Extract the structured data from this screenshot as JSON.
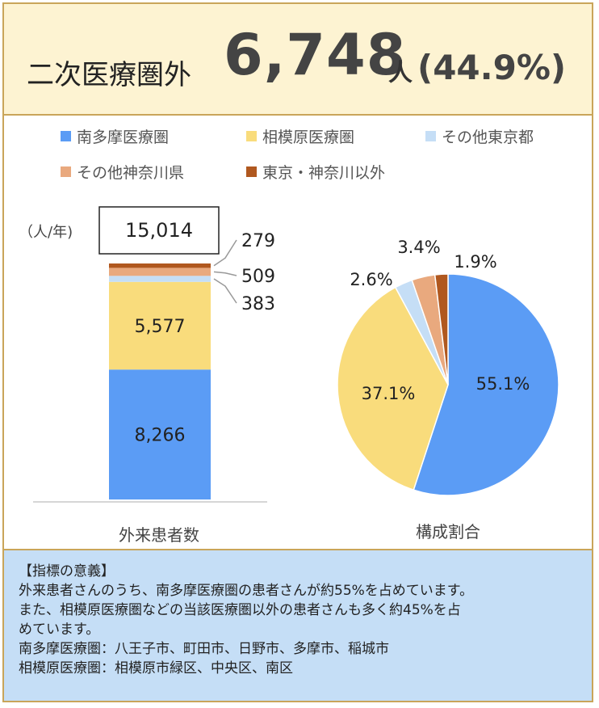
{
  "header": {
    "title": "二次医療圏外",
    "value": "6,748",
    "unit": "人",
    "percent": "(44.9%)"
  },
  "colors": {
    "border": "#c9a55a",
    "header_bg": "#fdf3d2",
    "note_bg": "#c5def6"
  },
  "chart_data": [
    {
      "type": "bar",
      "stacked": true,
      "unit_label": "（人/年)",
      "xlabel": "外来患者数",
      "total": 15014,
      "total_label": "15,014",
      "series": [
        {
          "name": "南多摩医療圏",
          "value": 8266,
          "label": "8,266",
          "color": "#5b9cf5"
        },
        {
          "name": "相模原医療圏",
          "value": 5577,
          "label": "5,577",
          "color": "#f9dc7c"
        },
        {
          "name": "その他東京都",
          "value": 383,
          "label": "383",
          "color": "#c5def6"
        },
        {
          "name": "その他神奈川県",
          "value": 509,
          "label": "509",
          "color": "#e9a97e"
        },
        {
          "name": "東京・神奈川以外",
          "value": 279,
          "label": "279",
          "color": "#b0581f"
        }
      ]
    },
    {
      "type": "pie",
      "xlabel": "構成割合",
      "slices": [
        {
          "name": "南多摩医療圏",
          "value": 55.1,
          "label": "55.1%",
          "color": "#5b9cf5"
        },
        {
          "name": "相模原医療圏",
          "value": 37.1,
          "label": "37.1%",
          "color": "#f9dc7c"
        },
        {
          "name": "その他東京都",
          "value": 2.6,
          "label": "2.6%",
          "color": "#c5def6"
        },
        {
          "name": "その他神奈川県",
          "value": 3.4,
          "label": "3.4%",
          "color": "#e9a97e"
        },
        {
          "name": "東京・神奈川以外",
          "value": 1.9,
          "label": "1.9%",
          "color": "#b0581f"
        }
      ]
    }
  ],
  "legend": [
    {
      "name": "南多摩医療圏",
      "color": "#5b9cf5"
    },
    {
      "name": "相模原医療圏",
      "color": "#f9dc7c"
    },
    {
      "name": "その他東京都",
      "color": "#c5def6"
    },
    {
      "name": "その他神奈川県",
      "color": "#e9a97e"
    },
    {
      "name": "東京・神奈川以外",
      "color": "#b0581f"
    }
  ],
  "note": {
    "heading": "【指標の意義】",
    "lines": [
      "外来患者さんのうち、南多摩医療圏の患者さんが約55%を占めています。",
      "また、相模原医療圏などの当該医療圏以外の患者さんも多く約45%を占",
      "めています。",
      "南多摩医療圏：八王子市、町田市、日野市、多摩市、稲城市",
      "相模原医療圏：相模原市緑区、中央区、南区"
    ]
  }
}
